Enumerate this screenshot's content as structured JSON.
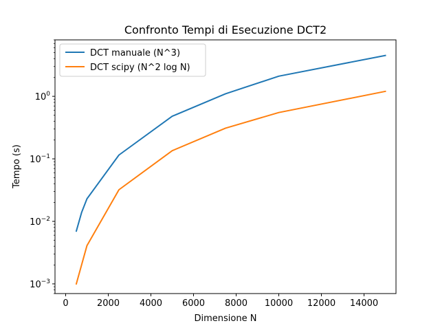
{
  "chart_data": {
    "type": "line",
    "title": "Confronto Tempi di Esecuzione DCT2",
    "xlabel": "Dimensione N",
    "ylabel": "Tempo (s)",
    "xlim": [
      -500,
      15500
    ],
    "ylim": [
      0.0007,
      8
    ],
    "yscale": "log",
    "x_ticks": [
      0,
      2000,
      4000,
      6000,
      8000,
      10000,
      12000,
      14000
    ],
    "x_tick_labels": [
      "0",
      "2000",
      "4000",
      "6000",
      "8000",
      "10000",
      "12000",
      "14000"
    ],
    "y_ticks": [
      0.001,
      0.01,
      0.1,
      1
    ],
    "y_tick_bases": [
      "10",
      "10",
      "10",
      "10"
    ],
    "y_tick_exponents": [
      "−3",
      "−2",
      "−1",
      "0"
    ],
    "grid": false,
    "legend_position": "top-left",
    "series": [
      {
        "name": "DCT manuale (N^3)",
        "color": "#1f77b4",
        "x": [
          500,
          750,
          1000,
          2500,
          5000,
          7500,
          10000,
          15000
        ],
        "y": [
          0.007,
          0.014,
          0.023,
          0.115,
          0.48,
          1.1,
          2.1,
          4.5
        ]
      },
      {
        "name": "DCT scipy (N^2 log N)",
        "color": "#ff7f0e",
        "x": [
          500,
          1000,
          2500,
          5000,
          7500,
          10000,
          15000
        ],
        "y": [
          0.001,
          0.0041,
          0.032,
          0.135,
          0.31,
          0.55,
          1.2
        ]
      }
    ]
  }
}
